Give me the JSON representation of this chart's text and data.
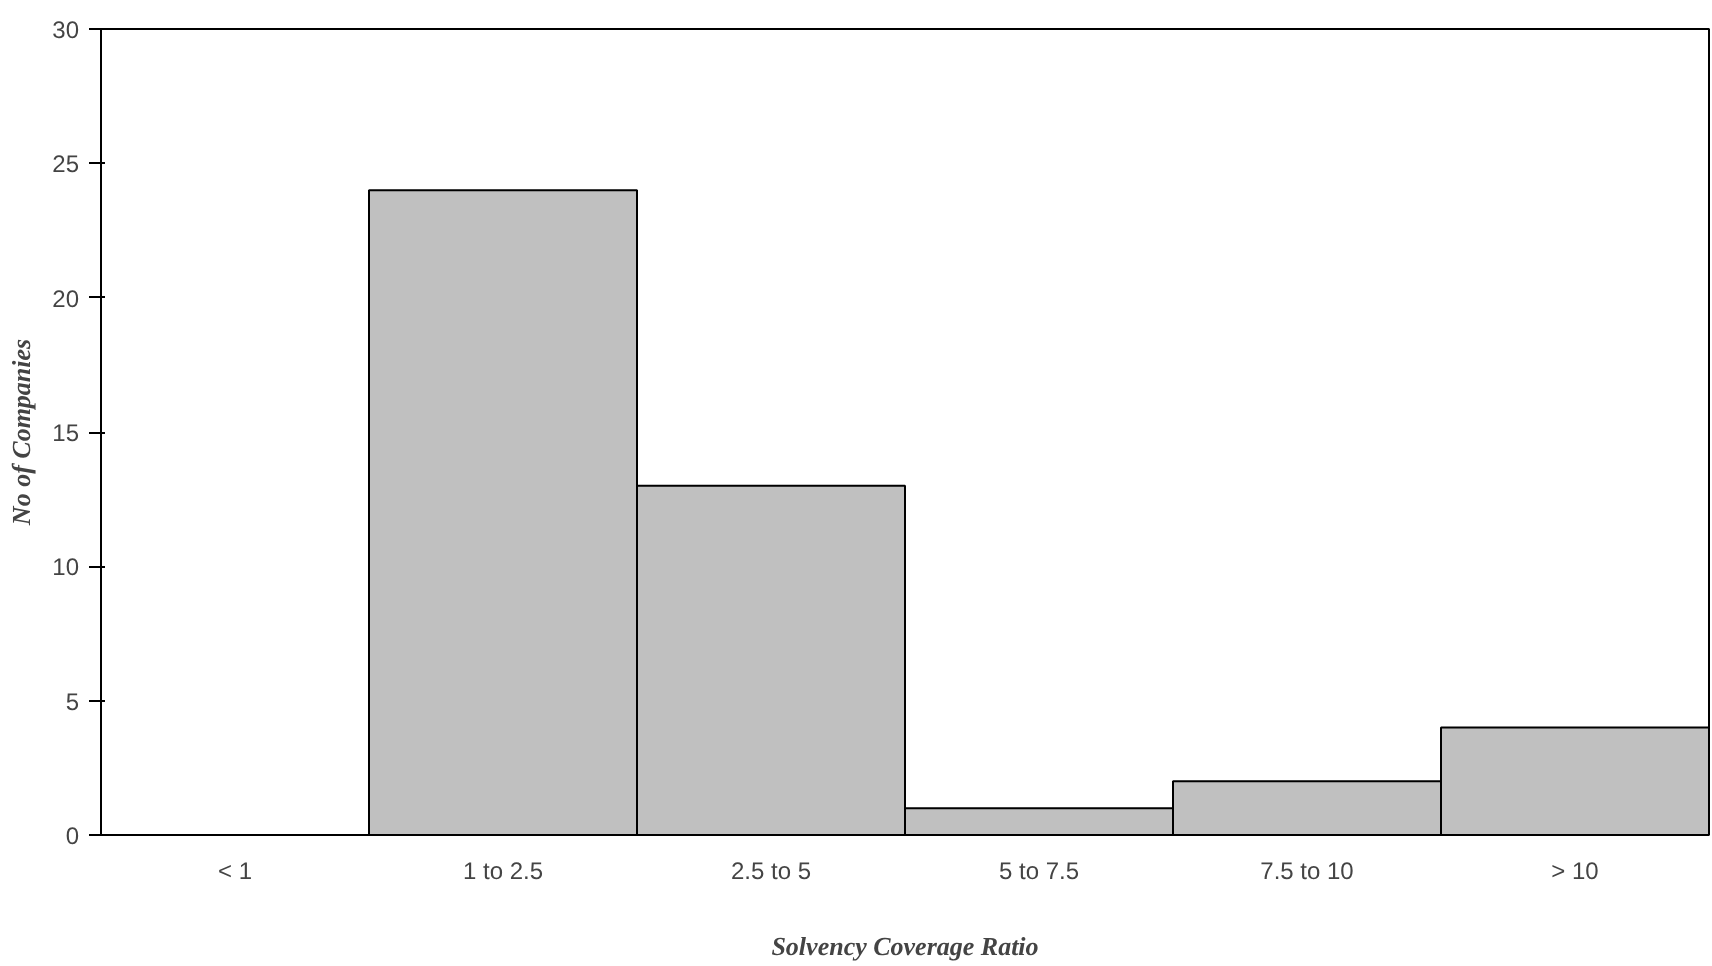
{
  "chart_data": {
    "type": "bar",
    "xlabel": "Solvency Coverage Ratio",
    "ylabel": "No of Companies",
    "categories": [
      "< 1",
      "1 to 2.5",
      "2.5 to 5",
      "5 to 7.5",
      "7.5 to 10",
      "> 10"
    ],
    "values": [
      0,
      24,
      13,
      1,
      2,
      4
    ],
    "color": "#c0c0c0",
    "ylim": [
      0,
      30
    ],
    "yticks": [
      0,
      5,
      10,
      15,
      20,
      25,
      30
    ],
    "grid": false
  }
}
